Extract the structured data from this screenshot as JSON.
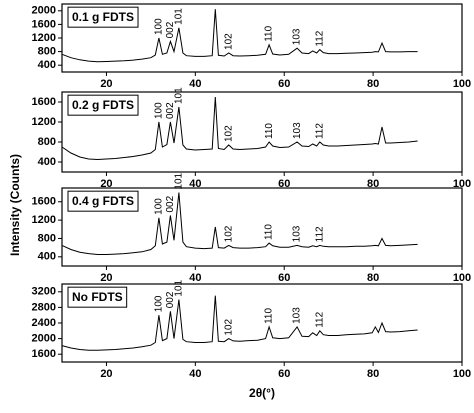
{
  "figure": {
    "ylabel": "Intensity (Counts)",
    "xlabel": "2θ(°)"
  },
  "chart_data": [
    {
      "type": "line",
      "x": [
        10,
        12,
        14,
        16,
        18,
        20,
        22,
        24,
        26,
        28,
        30,
        31,
        31.8,
        32.6,
        33.6,
        34.4,
        35.2,
        36.3,
        37.2,
        38,
        40,
        42,
        43.8,
        44.5,
        45.2,
        46.5,
        47.5,
        48.5,
        50,
        52,
        54,
        55.8,
        56.6,
        57.4,
        59,
        61,
        62.9,
        64,
        65.5,
        66.4,
        67.3,
        68,
        68.8,
        70,
        72,
        74,
        76,
        78,
        79.8,
        80.5,
        81.2,
        82,
        82.8,
        84,
        86,
        88,
        90
      ],
      "series": [
        {
          "name": "0.1 g FDTS",
          "color": "#000000",
          "values": [
            720,
            620,
            560,
            520,
            500,
            510,
            520,
            530,
            550,
            580,
            620,
            700,
            1200,
            720,
            760,
            1100,
            800,
            1500,
            760,
            680,
            660,
            660,
            680,
            2050,
            690,
            670,
            760,
            680,
            670,
            680,
            690,
            720,
            1000,
            730,
            700,
            720,
            900,
            760,
            740,
            820,
            760,
            860,
            770,
            740,
            740,
            750,
            760,
            770,
            780,
            800,
            790,
            1050,
            800,
            790,
            790,
            800,
            800
          ]
        }
      ],
      "annotations": [
        {
          "text": "100",
          "x": 31.8
        },
        {
          "text": "002",
          "x": 34.4
        },
        {
          "text": "101",
          "x": 36.3
        },
        {
          "text": "102",
          "x": 47.5
        },
        {
          "text": "110",
          "x": 56.6
        },
        {
          "text": "103",
          "x": 62.9
        },
        {
          "text": "112",
          "x": 68
        }
      ],
      "xlim": [
        10,
        100
      ],
      "xticks": [
        20,
        40,
        60,
        80,
        100
      ],
      "ylim": [
        200,
        2200
      ],
      "yticks": [
        400,
        800,
        1200,
        1600,
        2000
      ]
    },
    {
      "type": "line",
      "x": [
        10,
        12,
        14,
        16,
        18,
        20,
        22,
        24,
        26,
        28,
        30,
        31,
        31.8,
        32.6,
        33.6,
        34.4,
        35.2,
        36.3,
        37.2,
        38,
        40,
        42,
        43.8,
        44.5,
        45.2,
        46.5,
        47.5,
        48.5,
        50,
        52,
        54,
        55.8,
        56.6,
        57.4,
        59,
        61,
        62.9,
        64,
        65.5,
        66.4,
        67.3,
        68,
        68.8,
        70,
        72,
        74,
        76,
        78,
        79.8,
        80.5,
        81.2,
        82,
        82.8,
        84,
        86,
        88,
        90
      ],
      "series": [
        {
          "name": "0.2 g FDTS",
          "color": "#000000",
          "values": [
            700,
            580,
            500,
            460,
            450,
            460,
            470,
            490,
            510,
            540,
            580,
            650,
            1200,
            700,
            750,
            1200,
            780,
            1500,
            740,
            660,
            640,
            650,
            660,
            1700,
            670,
            650,
            740,
            660,
            650,
            660,
            670,
            700,
            800,
            720,
            690,
            700,
            800,
            720,
            710,
            760,
            720,
            800,
            740,
            720,
            720,
            730,
            740,
            750,
            760,
            770,
            760,
            1100,
            780,
            780,
            790,
            800,
            820
          ]
        }
      ],
      "annotations": [
        {
          "text": "100",
          "x": 31.8
        },
        {
          "text": "002",
          "x": 34.4
        },
        {
          "text": "101",
          "x": 36.3
        },
        {
          "text": "102",
          "x": 47.5
        },
        {
          "text": "110",
          "x": 56.6
        },
        {
          "text": "103",
          "x": 62.9
        },
        {
          "text": "112",
          "x": 68
        }
      ],
      "xlim": [
        10,
        100
      ],
      "xticks": [
        20,
        40,
        60,
        80,
        100
      ],
      "ylim": [
        200,
        1800
      ],
      "yticks": [
        400,
        800,
        1200,
        1600
      ]
    },
    {
      "type": "line",
      "x": [
        10,
        12,
        14,
        16,
        18,
        20,
        22,
        24,
        26,
        28,
        30,
        31,
        31.8,
        32.6,
        33.6,
        34.4,
        35.2,
        36.3,
        37.2,
        38,
        40,
        42,
        43.8,
        44.5,
        45.2,
        46.5,
        47.5,
        48.5,
        50,
        52,
        54,
        55.8,
        56.6,
        57.4,
        59,
        61,
        62.9,
        64,
        65.5,
        66.4,
        67.3,
        68,
        68.8,
        70,
        72,
        74,
        76,
        78,
        79.8,
        80.5,
        81.2,
        82,
        82.8,
        84,
        86,
        88,
        90
      ],
      "series": [
        {
          "name": "0.4 g FDTS",
          "color": "#000000",
          "values": [
            650,
            560,
            500,
            470,
            450,
            450,
            460,
            470,
            490,
            510,
            560,
            640,
            1250,
            680,
            720,
            1300,
            760,
            1800,
            720,
            620,
            590,
            580,
            590,
            1050,
            600,
            590,
            650,
            600,
            590,
            590,
            600,
            620,
            700,
            640,
            610,
            610,
            650,
            620,
            610,
            640,
            620,
            650,
            630,
            620,
            620,
            620,
            630,
            630,
            640,
            650,
            640,
            800,
            650,
            640,
            650,
            660,
            670
          ]
        }
      ],
      "annotations": [
        {
          "text": "100",
          "x": 31.8
        },
        {
          "text": "002",
          "x": 34.4
        },
        {
          "text": "101",
          "x": 36.3
        },
        {
          "text": "102",
          "x": 47.5
        },
        {
          "text": "110",
          "x": 56.6
        },
        {
          "text": "103",
          "x": 62.9
        },
        {
          "text": "112",
          "x": 68
        }
      ],
      "xlim": [
        10,
        100
      ],
      "xticks": [
        20,
        40,
        60,
        80,
        100
      ],
      "ylim": [
        200,
        1900
      ],
      "yticks": [
        400,
        800,
        1200,
        1600
      ]
    },
    {
      "type": "line",
      "x": [
        10,
        12,
        14,
        16,
        18,
        20,
        22,
        24,
        26,
        28,
        30,
        31,
        31.8,
        32.6,
        33.6,
        34.4,
        35.2,
        36.3,
        37.2,
        38,
        40,
        42,
        43.8,
        44.5,
        45.2,
        46.5,
        47.5,
        48.5,
        50,
        52,
        54,
        55.8,
        56.6,
        57.4,
        59,
        61,
        62.9,
        64,
        65.5,
        66.4,
        67.3,
        68,
        68.8,
        70,
        72,
        74,
        76,
        78,
        79.8,
        80.5,
        81.2,
        82,
        82.8,
        84,
        86,
        88,
        90
      ],
      "series": [
        {
          "name": "No FDTS",
          "color": "#000000",
          "values": [
            1820,
            1760,
            1720,
            1700,
            1700,
            1710,
            1720,
            1740,
            1760,
            1790,
            1830,
            1900,
            2600,
            1950,
            2000,
            2700,
            2000,
            3000,
            1980,
            1920,
            1900,
            1900,
            1920,
            3100,
            1930,
            1920,
            2000,
            1940,
            1930,
            1950,
            1960,
            2000,
            2300,
            2020,
            2000,
            2020,
            2300,
            2060,
            2050,
            2150,
            2080,
            2200,
            2100,
            2080,
            2080,
            2100,
            2110,
            2120,
            2150,
            2300,
            2160,
            2400,
            2180,
            2170,
            2180,
            2200,
            2220
          ]
        }
      ],
      "annotations": [
        {
          "text": "100",
          "x": 31.8
        },
        {
          "text": "002",
          "x": 34.4
        },
        {
          "text": "101",
          "x": 36.3
        },
        {
          "text": "102",
          "x": 47.5
        },
        {
          "text": "110",
          "x": 56.6
        },
        {
          "text": "103",
          "x": 62.9
        },
        {
          "text": "112",
          "x": 68
        }
      ],
      "xlim": [
        10,
        100
      ],
      "xticks": [
        20,
        40,
        60,
        80,
        100
      ],
      "ylim": [
        1400,
        3400
      ],
      "yticks": [
        1600,
        2000,
        2400,
        2800,
        3200
      ]
    }
  ]
}
